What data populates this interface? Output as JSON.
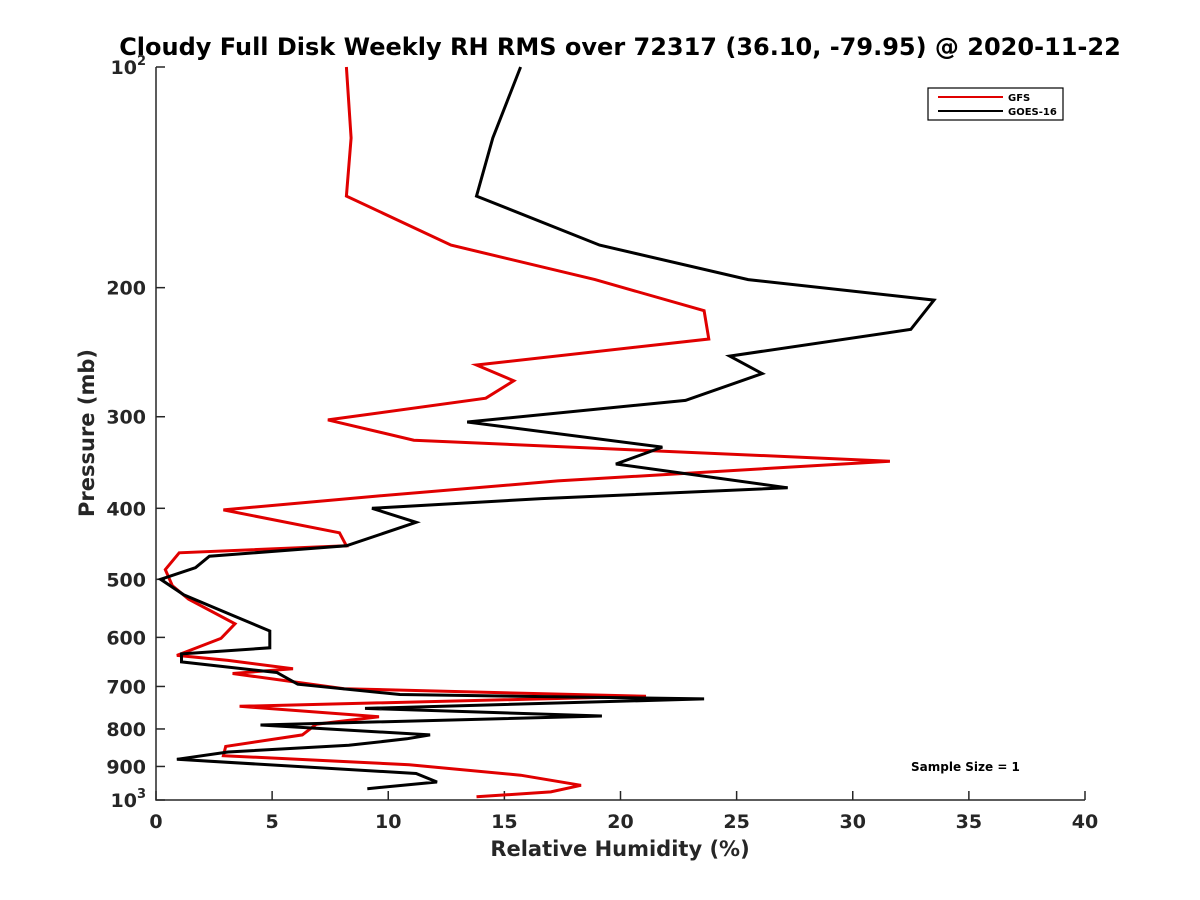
{
  "chart_data": {
    "type": "line",
    "title": "Cloudy Full Disk Weekly RH RMS over 72317 (36.10, -79.95) @ 2020-11-22",
    "xlabel": "Relative Humidity (%)",
    "ylabel": "Pressure (mb)",
    "xlim": [
      0,
      40
    ],
    "ylim": [
      100,
      1000
    ],
    "y_scale": "log",
    "y_reversed": true,
    "x_ticks": [
      "0",
      "5",
      "10",
      "15",
      "20",
      "25",
      "30",
      "35",
      "40"
    ],
    "y_ticks": [
      {
        "value": 100,
        "base": "10",
        "exp": "2"
      },
      {
        "value": 200,
        "label": "200"
      },
      {
        "value": 300,
        "label": "300"
      },
      {
        "value": 400,
        "label": "400"
      },
      {
        "value": 500,
        "label": "500"
      },
      {
        "value": 600,
        "label": "600"
      },
      {
        "value": 700,
        "label": "700"
      },
      {
        "value": 800,
        "label": "800"
      },
      {
        "value": 900,
        "label": "900"
      },
      {
        "value": 1000,
        "base": "10",
        "exp": "3"
      }
    ],
    "grid": false,
    "legend_position": "top-right",
    "annotation": "Sample Size = 1",
    "series": [
      {
        "name": "GFS",
        "color": "#e00000",
        "points": [
          [
            8.2,
            100
          ],
          [
            8.4,
            125
          ],
          [
            8.2,
            150
          ],
          [
            12.7,
            175
          ],
          [
            18.9,
            195
          ],
          [
            23.6,
            215
          ],
          [
            23.8,
            235
          ],
          [
            13.8,
            255
          ],
          [
            15.4,
            268
          ],
          [
            14.2,
            283
          ],
          [
            7.4,
            303
          ],
          [
            11.1,
            323
          ],
          [
            31.6,
            345
          ],
          [
            17.3,
            367
          ],
          [
            9.5,
            385
          ],
          [
            2.9,
            402
          ],
          [
            7.9,
            432
          ],
          [
            8.2,
            450
          ],
          [
            1.0,
            460
          ],
          [
            0.4,
            485
          ],
          [
            0.7,
            510
          ],
          [
            1.4,
            532
          ],
          [
            3.4,
            575
          ],
          [
            2.8,
            602
          ],
          [
            0.9,
            635
          ],
          [
            3.1,
            645
          ],
          [
            5.9,
            662
          ],
          [
            3.3,
            672
          ],
          [
            8.1,
            705
          ],
          [
            21.1,
            722
          ],
          [
            3.6,
            745
          ],
          [
            9.6,
            770
          ],
          [
            6.9,
            788
          ],
          [
            6.3,
            815
          ],
          [
            3.0,
            845
          ],
          [
            2.9,
            870
          ],
          [
            10.9,
            895
          ],
          [
            15.7,
            925
          ],
          [
            18.3,
            955
          ],
          [
            17.0,
            975
          ],
          [
            13.8,
            990
          ]
        ]
      },
      {
        "name": "GOES-16",
        "color": "#000000",
        "points": [
          [
            15.7,
            100
          ],
          [
            14.5,
            125
          ],
          [
            13.8,
            150
          ],
          [
            19.1,
            175
          ],
          [
            25.5,
            195
          ],
          [
            33.5,
            208
          ],
          [
            32.5,
            228
          ],
          [
            24.7,
            248
          ],
          [
            26.1,
            262
          ],
          [
            22.8,
            285
          ],
          [
            13.4,
            305
          ],
          [
            21.8,
            330
          ],
          [
            19.8,
            348
          ],
          [
            27.2,
            375
          ],
          [
            16.6,
            388
          ],
          [
            9.3,
            400
          ],
          [
            11.2,
            418
          ],
          [
            8.2,
            450
          ],
          [
            2.3,
            465
          ],
          [
            1.7,
            482
          ],
          [
            0.2,
            500
          ],
          [
            1.2,
            525
          ],
          [
            3.3,
            560
          ],
          [
            4.9,
            588
          ],
          [
            4.9,
            620
          ],
          [
            1.1,
            632
          ],
          [
            1.1,
            648
          ],
          [
            5.2,
            670
          ],
          [
            6.1,
            695
          ],
          [
            10.5,
            718
          ],
          [
            23.6,
            728
          ],
          [
            9.0,
            750
          ],
          [
            19.2,
            768
          ],
          [
            4.5,
            790
          ],
          [
            11.8,
            815
          ],
          [
            10.8,
            825
          ],
          [
            8.3,
            842
          ],
          [
            3.1,
            860
          ],
          [
            0.9,
            880
          ],
          [
            11.2,
            920
          ],
          [
            12.1,
            945
          ],
          [
            9.1,
            965
          ]
        ]
      }
    ]
  }
}
